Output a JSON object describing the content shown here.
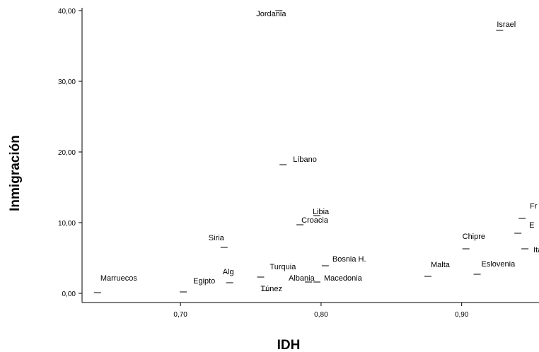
{
  "chart_data": {
    "type": "scatter",
    "xlabel": "IDH",
    "ylabel": "Inmigración",
    "xlim": [
      0.63,
      0.955
    ],
    "ylim": [
      -1.3,
      40.4
    ],
    "x_ticks": [
      0.7,
      0.8,
      0.9
    ],
    "x_tick_labels": [
      "0,70",
      "0,80",
      "0,90"
    ],
    "y_ticks": [
      0,
      10,
      20,
      30,
      40
    ],
    "y_tick_labels": [
      "0,00",
      "10,00",
      "20,00",
      "30,00",
      "40,00"
    ],
    "grid": false,
    "points": [
      {
        "label": "Marruecos",
        "x": 0.641,
        "y": 0.1
      },
      {
        "label": "Egipto",
        "x": 0.702,
        "y": 0.2
      },
      {
        "label": "Alg",
        "x": 0.735,
        "y": 1.5
      },
      {
        "label": "Siria",
        "x": 0.731,
        "y": 6.5
      },
      {
        "label": "Turquia",
        "x": 0.757,
        "y": 2.3
      },
      {
        "label": "Túnez",
        "x": 0.76,
        "y": 0.4
      },
      {
        "label": "Jordania",
        "x": 0.77,
        "y": 40.0
      },
      {
        "label": "Líbano",
        "x": 0.773,
        "y": 18.2
      },
      {
        "label": "Croacia",
        "x": 0.785,
        "y": 9.7
      },
      {
        "label": "Libia",
        "x": 0.797,
        "y": 11.0
      },
      {
        "label": "Albania",
        "x": 0.791,
        "y": 1.6
      },
      {
        "label": "Macedonia",
        "x": 0.797,
        "y": 1.6
      },
      {
        "label": "Bosnia H.",
        "x": 0.803,
        "y": 3.9
      },
      {
        "label": "Malta",
        "x": 0.876,
        "y": 2.4
      },
      {
        "label": "Chipre",
        "x": 0.903,
        "y": 6.3
      },
      {
        "label": "Eslovenia",
        "x": 0.911,
        "y": 2.7
      },
      {
        "label": "Israel",
        "x": 0.927,
        "y": 37.2
      },
      {
        "label": "Fr",
        "x": 0.943,
        "y": 10.6
      },
      {
        "label": "E",
        "x": 0.94,
        "y": 8.5
      },
      {
        "label": "Ital",
        "x": 0.945,
        "y": 6.3
      }
    ]
  }
}
